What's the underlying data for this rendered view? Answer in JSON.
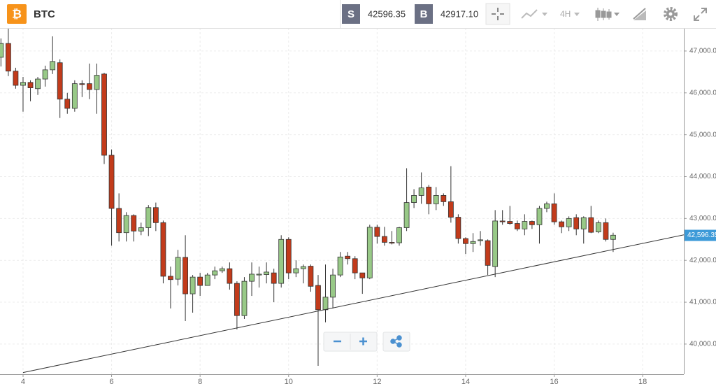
{
  "header": {
    "icon": "₿",
    "symbol": "BTC",
    "sell_label": "S",
    "sell_price": "42596.35",
    "buy_label": "B",
    "buy_price": "42917.10",
    "timeframe": "4H"
  },
  "chart_data": {
    "type": "candlestick",
    "up_color": "#98c987",
    "down_color": "#c23b1b",
    "grid": true,
    "xlim": [
      3.479,
      18.93
    ],
    "ylim": [
      39280,
      47550
    ],
    "xticks": [
      4,
      6,
      8,
      10,
      12,
      14,
      16,
      18
    ],
    "yticks": [
      {
        "value": 40000,
        "label": "40,000.00"
      },
      {
        "value": 41000,
        "label": "41,000.00"
      },
      {
        "value": 42000,
        "label": "42,000.00"
      },
      {
        "value": 43000,
        "label": "43,000.00"
      },
      {
        "value": 44000,
        "label": "44,000.00"
      },
      {
        "value": 45000,
        "label": "45,000.00"
      },
      {
        "value": 46000,
        "label": "46,000.00"
      },
      {
        "value": 47000,
        "label": "47,000.00"
      }
    ],
    "last_price": {
      "value": 42596.35,
      "label": "42,596.35"
    },
    "trendline": {
      "x": [
        4,
        18.93
      ],
      "y": [
        39320,
        42610
      ]
    },
    "x": [
      3.5,
      3.667,
      3.833,
      4,
      4.167,
      4.333,
      4.5,
      4.667,
      4.833,
      5,
      5.167,
      5.333,
      5.5,
      5.667,
      5.833,
      6,
      6.167,
      6.333,
      6.5,
      6.667,
      6.833,
      7,
      7.167,
      7.333,
      7.5,
      7.667,
      7.833,
      8,
      8.167,
      8.333,
      8.5,
      8.667,
      8.833,
      9,
      9.167,
      9.333,
      9.5,
      9.667,
      9.833,
      10,
      10.167,
      10.333,
      10.5,
      10.667,
      10.833,
      11,
      11.167,
      11.333,
      11.5,
      11.667,
      11.833,
      12,
      12.167,
      12.333,
      12.5,
      12.667,
      12.833,
      13,
      13.167,
      13.333,
      13.5,
      13.667,
      13.833,
      14,
      14.167,
      14.333,
      14.5,
      14.667,
      14.833,
      15,
      15.167,
      15.333,
      15.5,
      15.667,
      15.833,
      16,
      16.167,
      16.333,
      16.5,
      16.667,
      16.833,
      17,
      17.167,
      17.333
    ],
    "open": [
      46850,
      47180,
      46520,
      46180,
      46250,
      46100,
      46330,
      46550,
      46720,
      45850,
      45630,
      46220,
      46220,
      46080,
      46450,
      44510,
      43240,
      42660,
      43070,
      42700,
      42780,
      43260,
      42900,
      41620,
      41550,
      42070,
      41200,
      41600,
      41400,
      41650,
      41750,
      41800,
      41450,
      40680,
      41500,
      41650,
      41660,
      41700,
      41450,
      42500,
      41700,
      41800,
      41860,
      41400,
      40820,
      41120,
      41650,
      42100,
      42040,
      41700,
      41580,
      42790,
      42570,
      42430,
      42420,
      42780,
      43380,
      43550,
      43750,
      43350,
      43550,
      43400,
      43030,
      42520,
      42400,
      42470,
      42470,
      41850,
      42940,
      42930,
      42880,
      42750,
      42930,
      42850,
      43240,
      43350,
      42920,
      42800,
      43020,
      42750,
      43020,
      42680,
      42900,
      42500
    ],
    "high": [
      47300,
      47550,
      46600,
      46380,
      46300,
      46380,
      46650,
      47350,
      46800,
      46000,
      46300,
      46300,
      46700,
      46700,
      46480,
      44650,
      43600,
      43150,
      43100,
      42900,
      43320,
      43380,
      42950,
      41850,
      42250,
      42600,
      41650,
      41700,
      41700,
      41850,
      41850,
      41950,
      41500,
      41600,
      41950,
      41850,
      41950,
      41800,
      42600,
      42550,
      42000,
      41900,
      41900,
      41650,
      41900,
      41800,
      42200,
      42200,
      42100,
      41700,
      42850,
      42850,
      42800,
      42700,
      42800,
      44200,
      43700,
      44100,
      43800,
      43750,
      43600,
      44250,
      43100,
      42550,
      42650,
      42700,
      42500,
      43200,
      43200,
      43300,
      42950,
      43100,
      42950,
      43300,
      43400,
      43600,
      42950,
      43050,
      43100,
      43050,
      43300,
      42950,
      43000,
      42660
    ],
    "low": [
      46630,
      46400,
      46100,
      45550,
      45800,
      45950,
      46150,
      46450,
      45400,
      45500,
      45550,
      45900,
      45850,
      45500,
      44300,
      42350,
      42450,
      42450,
      42450,
      42600,
      42580,
      42700,
      41450,
      40850,
      41400,
      40550,
      40750,
      41150,
      41400,
      41550,
      41700,
      41300,
      40350,
      40600,
      41150,
      41350,
      41450,
      41000,
      41350,
      41550,
      41600,
      41450,
      41250,
      39480,
      40520,
      40850,
      41600,
      41900,
      41550,
      41200,
      41550,
      42400,
      42350,
      42380,
      42350,
      42700,
      43250,
      43350,
      43100,
      43200,
      43300,
      42900,
      42400,
      42150,
      42200,
      42350,
      41650,
      41600,
      42850,
      42850,
      42700,
      42600,
      42750,
      42400,
      43150,
      42850,
      42650,
      42700,
      42600,
      42400,
      42650,
      42650,
      42450,
      42200
    ],
    "close": [
      47180,
      46520,
      46180,
      46250,
      46120,
      46330,
      46550,
      46750,
      45850,
      45630,
      46220,
      46200,
      46080,
      46420,
      44510,
      43240,
      42660,
      43070,
      42700,
      42780,
      43260,
      42900,
      41620,
      41540,
      42070,
      41200,
      41600,
      41400,
      41650,
      41750,
      41800,
      41450,
      40680,
      41500,
      41670,
      41670,
      41720,
      41450,
      42500,
      41700,
      41800,
      41850,
      41380,
      40820,
      41120,
      41650,
      42080,
      42040,
      41700,
      41580,
      42790,
      42570,
      42430,
      42410,
      42780,
      43380,
      43550,
      43730,
      43350,
      43550,
      43400,
      43030,
      42520,
      42400,
      42450,
      42490,
      41880,
      42940,
      42920,
      42880,
      42750,
      42930,
      42850,
      43240,
      43350,
      42920,
      42800,
      43000,
      42750,
      43020,
      42670,
      42900,
      42500,
      42600
    ]
  }
}
